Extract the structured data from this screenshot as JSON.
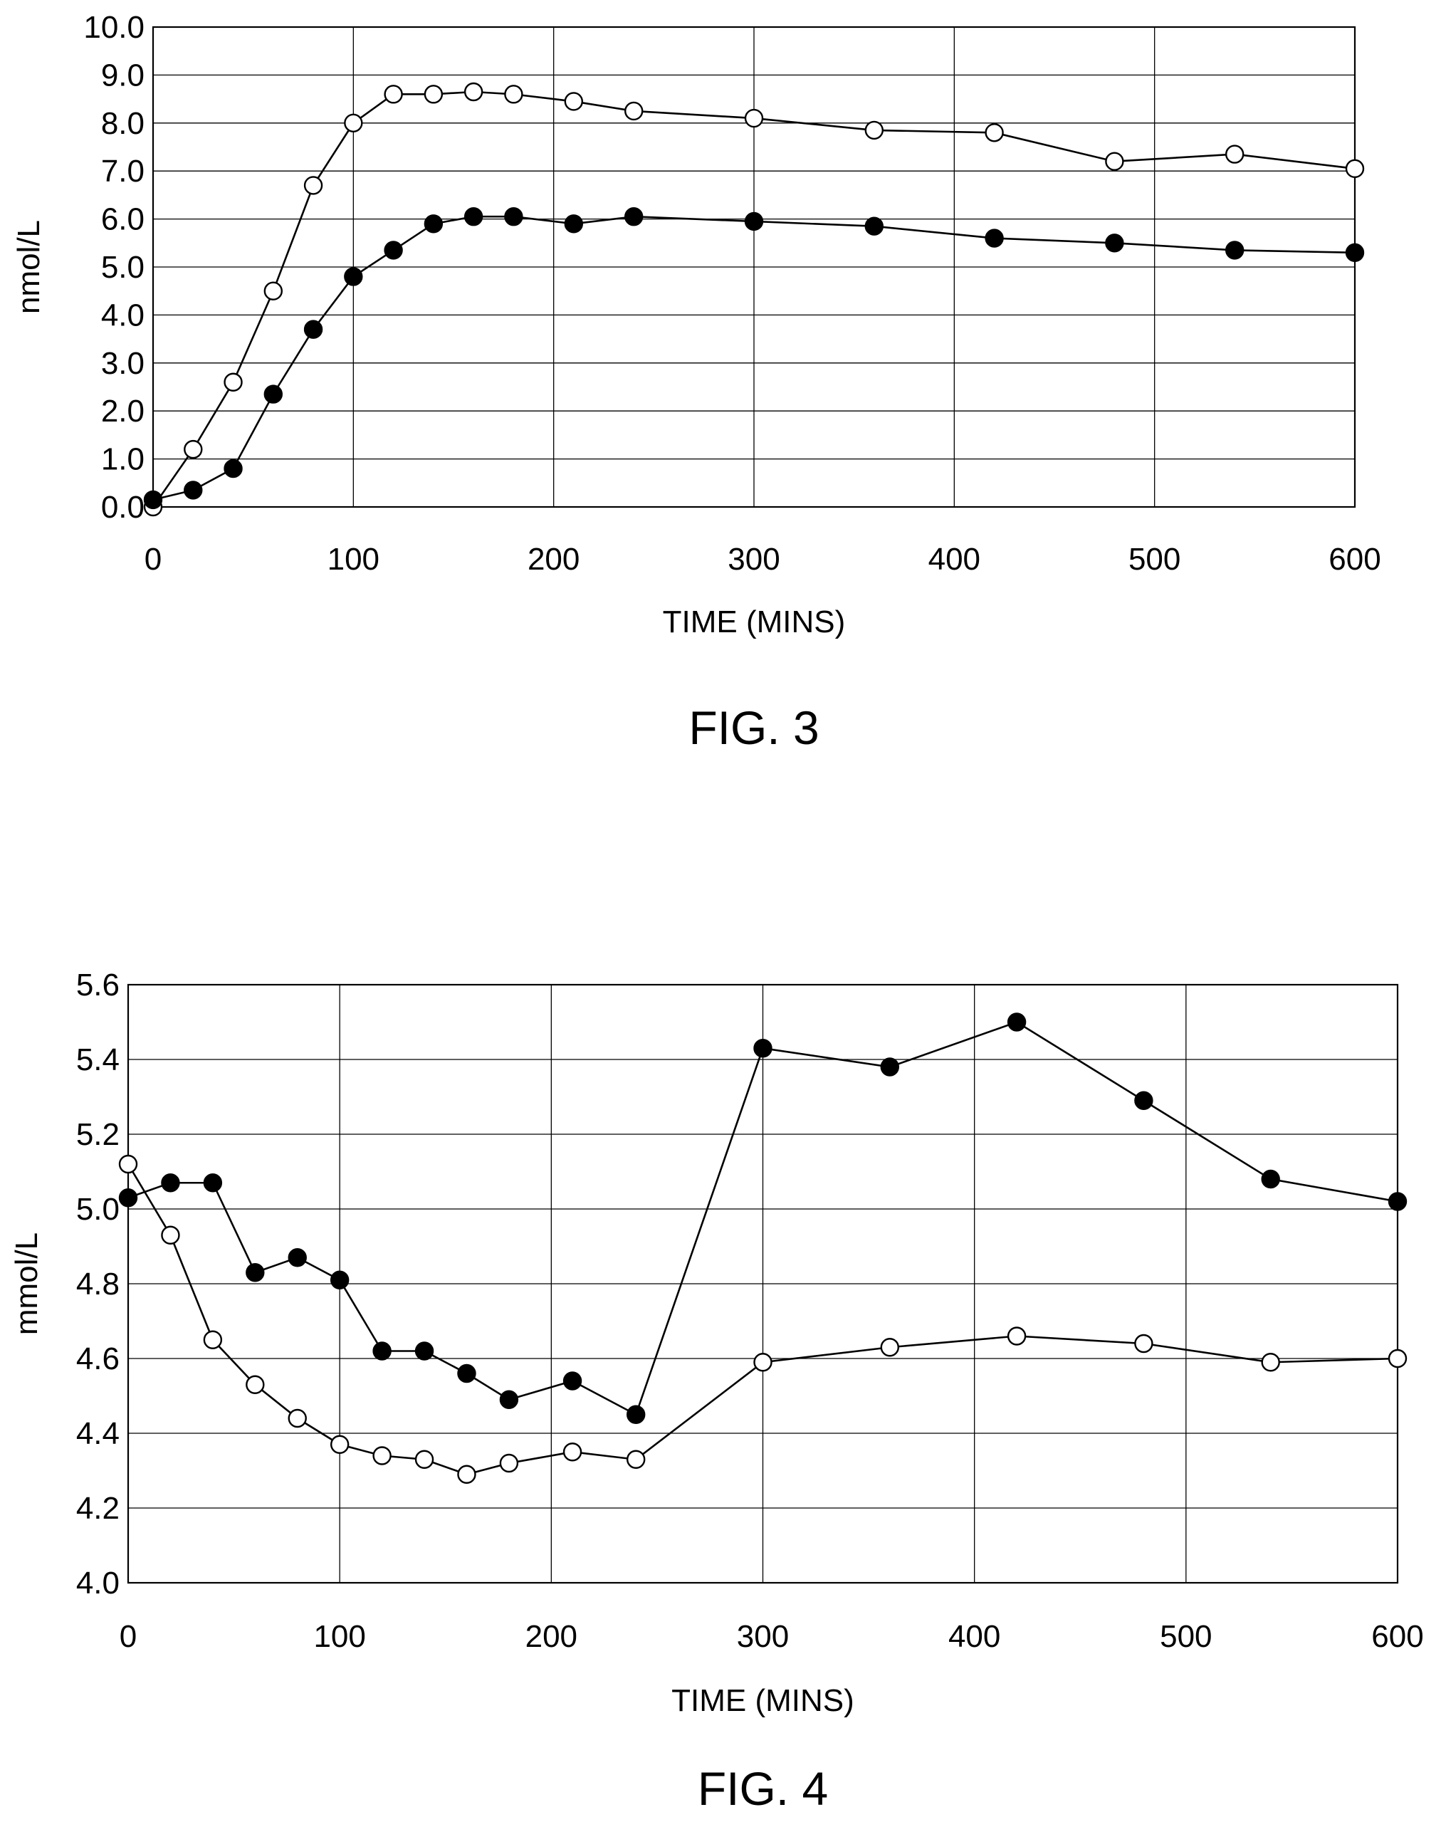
{
  "chart_data": [
    {
      "type": "line",
      "caption": "FIG. 3",
      "xlabel": "TIME (MINS)",
      "ylabel": "nmol/L",
      "xlim": [
        0,
        600
      ],
      "ylim": [
        0,
        10
      ],
      "x_ticks": [
        0,
        100,
        200,
        300,
        400,
        500,
        600
      ],
      "x_tick_labels": [
        "0",
        "100",
        "200",
        "300",
        "400",
        "500",
        "600"
      ],
      "y_ticks": [
        0,
        1,
        2,
        3,
        4,
        5,
        6,
        7,
        8,
        9,
        10
      ],
      "y_tick_labels": [
        "0.0",
        "1.0",
        "2.0",
        "3.0",
        "4.0",
        "5.0",
        "6.0",
        "7.0",
        "8.0",
        "9.0",
        "10.0"
      ],
      "grid": true,
      "series": [
        {
          "marker": "open-circle",
          "x": [
            0,
            20,
            40,
            60,
            80,
            100,
            120,
            140,
            160,
            180,
            210,
            240,
            300,
            360,
            420,
            480,
            540,
            600
          ],
          "values": [
            0.0,
            1.2,
            2.6,
            4.5,
            6.7,
            8.0,
            8.6,
            8.6,
            8.65,
            8.6,
            8.45,
            8.25,
            8.1,
            7.85,
            7.8,
            7.2,
            7.35,
            7.05
          ]
        },
        {
          "marker": "filled-circle",
          "x": [
            0,
            20,
            40,
            60,
            80,
            100,
            120,
            140,
            160,
            180,
            210,
            240,
            300,
            360,
            420,
            480,
            540,
            600
          ],
          "values": [
            0.15,
            0.35,
            0.8,
            2.35,
            3.7,
            4.8,
            5.35,
            5.9,
            6.05,
            6.05,
            5.9,
            6.05,
            5.95,
            5.85,
            5.6,
            5.5,
            5.35,
            5.3
          ]
        }
      ]
    },
    {
      "type": "line",
      "caption": "FIG. 4",
      "xlabel": "TIME (MINS)",
      "ylabel": "mmol/L",
      "xlim": [
        0,
        600
      ],
      "ylim": [
        4.0,
        5.6
      ],
      "x_ticks": [
        0,
        100,
        200,
        300,
        400,
        500,
        600
      ],
      "x_tick_labels": [
        "0",
        "100",
        "200",
        "300",
        "400",
        "500",
        "600"
      ],
      "y_ticks": [
        4.0,
        4.2,
        4.4,
        4.6,
        4.8,
        5.0,
        5.2,
        5.4,
        5.6
      ],
      "y_tick_labels": [
        "4.0",
        "4.2",
        "4.4",
        "4.6",
        "4.8",
        "5.0",
        "5.2",
        "5.4",
        "5.6"
      ],
      "grid": true,
      "series": [
        {
          "marker": "filled-circle",
          "x": [
            0,
            20,
            40,
            60,
            80,
            100,
            120,
            140,
            160,
            180,
            210,
            240,
            300,
            360,
            420,
            480,
            540,
            600
          ],
          "values": [
            5.03,
            5.07,
            5.07,
            4.83,
            4.87,
            4.81,
            4.62,
            4.62,
            4.56,
            4.49,
            4.54,
            4.45,
            5.43,
            5.38,
            5.5,
            5.29,
            5.08,
            5.02
          ]
        },
        {
          "marker": "open-circle",
          "x": [
            0,
            20,
            40,
            60,
            80,
            100,
            120,
            140,
            160,
            180,
            210,
            240,
            300,
            360,
            420,
            480,
            540,
            600
          ],
          "values": [
            5.12,
            4.93,
            4.65,
            4.53,
            4.44,
            4.37,
            4.34,
            4.33,
            4.29,
            4.32,
            4.35,
            4.33,
            4.59,
            4.63,
            4.66,
            4.64,
            4.59,
            4.6
          ]
        }
      ]
    }
  ]
}
